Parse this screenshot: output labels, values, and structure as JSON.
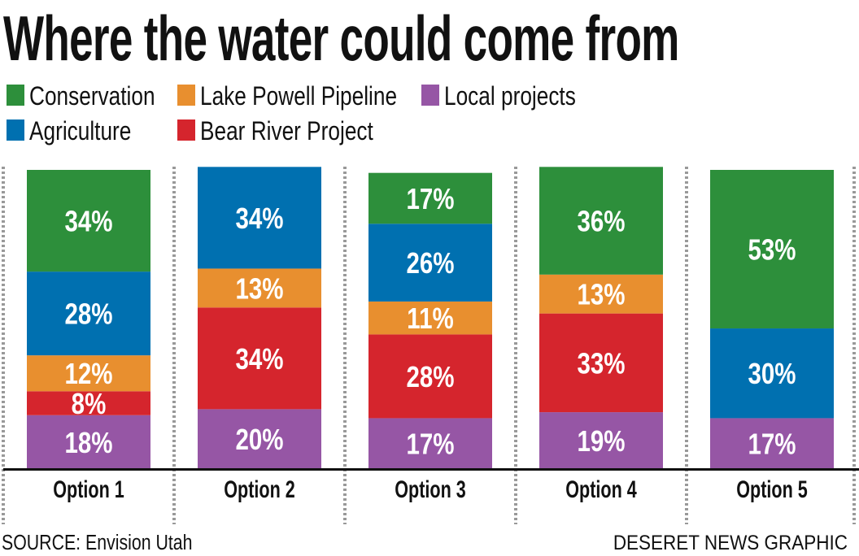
{
  "chart_data": {
    "type": "bar",
    "stacked": true,
    "title": "Where the water could come from",
    "categories": [
      "Option 1",
      "Option 2",
      "Option 3",
      "Option 4",
      "Option 5"
    ],
    "series": [
      {
        "name": "Local projects",
        "color": "#9656a5",
        "values": [
          18,
          20,
          17,
          19,
          17
        ]
      },
      {
        "name": "Bear River Project",
        "color": "#d5252d",
        "values": [
          8,
          34,
          28,
          33,
          null
        ]
      },
      {
        "name": "Lake Powell Pipeline",
        "color": "#e88f2f",
        "values": [
          12,
          13,
          11,
          13,
          null
        ]
      },
      {
        "name": "Agriculture",
        "color": "#0070b0",
        "values": [
          28,
          34,
          26,
          null,
          30
        ]
      },
      {
        "name": "Conservation",
        "color": "#2d8f3b",
        "values": [
          34,
          null,
          17,
          36,
          53
        ]
      }
    ],
    "legend_order": [
      "Conservation",
      "Lake Powell Pipeline",
      "Local projects",
      "Agriculture",
      "Bear River Project"
    ],
    "value_suffix": "%",
    "ylim": [
      0,
      100
    ],
    "legend_placement": "top-left",
    "source": "SOURCE: Envision Utah",
    "credit": "DESERET NEWS GRAPHIC"
  }
}
